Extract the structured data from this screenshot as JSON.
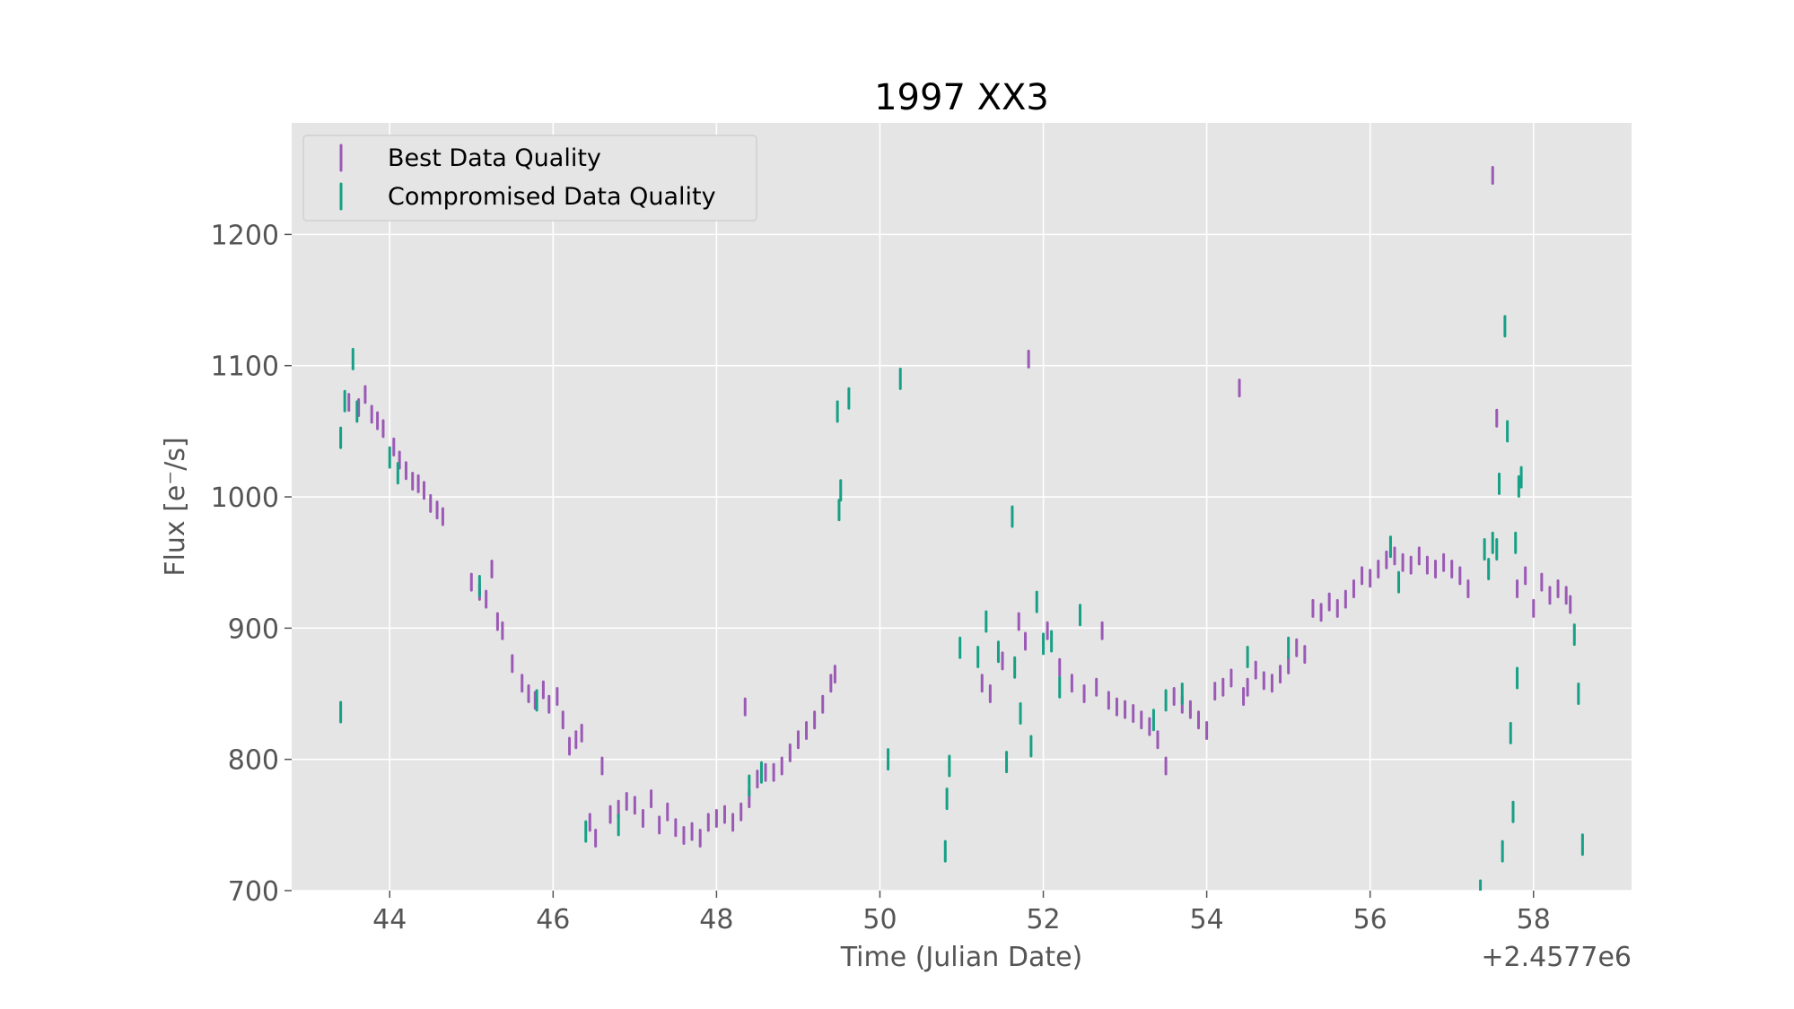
{
  "chart_data": {
    "type": "scatter",
    "title": "1997 XX3",
    "xlabel": "Time (Julian Date)",
    "ylabel": "Flux [e⁻/s]",
    "x_offset_label": "+2.4577e6",
    "xlim": [
      42.8,
      59.2
    ],
    "ylim": [
      700,
      1285
    ],
    "xticks": [
      44,
      46,
      48,
      50,
      52,
      54,
      56,
      58
    ],
    "yticks": [
      700,
      800,
      900,
      1000,
      1100,
      1200
    ],
    "grid": true,
    "legend_position": "upper-left",
    "series": [
      {
        "name": "Best Data Quality",
        "color": "#9b59b6",
        "marker": "errorbar",
        "points": [
          [
            43.5,
            1072
          ],
          [
            43.62,
            1068
          ],
          [
            43.7,
            1078
          ],
          [
            43.78,
            1063
          ],
          [
            43.85,
            1058
          ],
          [
            43.92,
            1052
          ],
          [
            44.05,
            1038
          ],
          [
            44.12,
            1028
          ],
          [
            44.2,
            1020
          ],
          [
            44.28,
            1012
          ],
          [
            44.35,
            1010
          ],
          [
            44.42,
            1005
          ],
          [
            44.5,
            995
          ],
          [
            44.58,
            990
          ],
          [
            44.65,
            985
          ],
          [
            45.0,
            935
          ],
          [
            45.1,
            928
          ],
          [
            45.18,
            922
          ],
          [
            45.25,
            945
          ],
          [
            45.32,
            905
          ],
          [
            45.38,
            898
          ],
          [
            45.5,
            873
          ],
          [
            45.62,
            858
          ],
          [
            45.7,
            850
          ],
          [
            45.78,
            845
          ],
          [
            45.88,
            853
          ],
          [
            45.95,
            842
          ],
          [
            46.05,
            848
          ],
          [
            46.12,
            830
          ],
          [
            46.2,
            810
          ],
          [
            46.28,
            815
          ],
          [
            46.35,
            820
          ],
          [
            46.45,
            752
          ],
          [
            46.52,
            740
          ],
          [
            46.6,
            795
          ],
          [
            46.7,
            758
          ],
          [
            46.8,
            762
          ],
          [
            46.9,
            768
          ],
          [
            47.0,
            765
          ],
          [
            47.1,
            755
          ],
          [
            47.2,
            770
          ],
          [
            47.3,
            750
          ],
          [
            47.4,
            760
          ],
          [
            47.5,
            748
          ],
          [
            47.6,
            742
          ],
          [
            47.7,
            745
          ],
          [
            47.8,
            740
          ],
          [
            47.9,
            752
          ],
          [
            48.0,
            755
          ],
          [
            48.1,
            758
          ],
          [
            48.2,
            752
          ],
          [
            48.3,
            760
          ],
          [
            48.35,
            840
          ],
          [
            48.4,
            770
          ],
          [
            48.5,
            785
          ],
          [
            48.6,
            790
          ],
          [
            48.7,
            790
          ],
          [
            48.8,
            795
          ],
          [
            48.9,
            805
          ],
          [
            49.0,
            815
          ],
          [
            49.1,
            822
          ],
          [
            49.2,
            830
          ],
          [
            49.3,
            842
          ],
          [
            49.4,
            858
          ],
          [
            49.45,
            865
          ],
          [
            51.25,
            858
          ],
          [
            51.35,
            850
          ],
          [
            51.5,
            875
          ],
          [
            51.7,
            905
          ],
          [
            51.78,
            890
          ],
          [
            51.82,
            1105
          ],
          [
            52.05,
            898
          ],
          [
            52.2,
            870
          ],
          [
            52.35,
            858
          ],
          [
            52.5,
            850
          ],
          [
            52.65,
            855
          ],
          [
            52.72,
            898
          ],
          [
            52.8,
            845
          ],
          [
            52.9,
            840
          ],
          [
            53.0,
            838
          ],
          [
            53.1,
            835
          ],
          [
            53.2,
            830
          ],
          [
            53.3,
            825
          ],
          [
            53.4,
            815
          ],
          [
            53.5,
            795
          ],
          [
            53.6,
            848
          ],
          [
            53.7,
            842
          ],
          [
            53.8,
            838
          ],
          [
            53.9,
            830
          ],
          [
            54.0,
            822
          ],
          [
            54.1,
            852
          ],
          [
            54.2,
            855
          ],
          [
            54.3,
            862
          ],
          [
            54.4,
            1083
          ],
          [
            54.45,
            848
          ],
          [
            54.5,
            855
          ],
          [
            54.6,
            868
          ],
          [
            54.7,
            860
          ],
          [
            54.8,
            858
          ],
          [
            54.9,
            865
          ],
          [
            55.0,
            872
          ],
          [
            55.1,
            885
          ],
          [
            55.2,
            880
          ],
          [
            55.3,
            915
          ],
          [
            55.4,
            912
          ],
          [
            55.5,
            920
          ],
          [
            55.6,
            915
          ],
          [
            55.7,
            922
          ],
          [
            55.8,
            930
          ],
          [
            55.9,
            940
          ],
          [
            56.0,
            938
          ],
          [
            56.1,
            945
          ],
          [
            56.2,
            952
          ],
          [
            56.3,
            955
          ],
          [
            56.4,
            950
          ],
          [
            56.5,
            948
          ],
          [
            56.6,
            955
          ],
          [
            56.7,
            948
          ],
          [
            56.8,
            945
          ],
          [
            56.9,
            950
          ],
          [
            57.0,
            945
          ],
          [
            57.1,
            940
          ],
          [
            57.2,
            930
          ],
          [
            57.5,
            1245
          ],
          [
            57.55,
            1060
          ],
          [
            57.8,
            930
          ],
          [
            57.9,
            940
          ],
          [
            58.0,
            915
          ],
          [
            58.1,
            935
          ],
          [
            58.2,
            925
          ],
          [
            58.3,
            930
          ],
          [
            58.4,
            925
          ],
          [
            58.45,
            918
          ]
        ]
      },
      {
        "name": "Compromised Data Quality",
        "color": "#16a085",
        "marker": "errorbar",
        "points": [
          [
            43.4,
            1045
          ],
          [
            43.4,
            836
          ],
          [
            43.45,
            1073
          ],
          [
            43.55,
            1105
          ],
          [
            43.6,
            1065
          ],
          [
            44.0,
            1030
          ],
          [
            44.1,
            1018
          ],
          [
            45.1,
            932
          ],
          [
            45.8,
            845
          ],
          [
            46.4,
            745
          ],
          [
            46.8,
            750
          ],
          [
            48.4,
            780
          ],
          [
            48.55,
            790
          ],
          [
            49.5,
            990
          ],
          [
            49.52,
            1005
          ],
          [
            49.48,
            1065
          ],
          [
            49.62,
            1075
          ],
          [
            50.1,
            800
          ],
          [
            50.25,
            1090
          ],
          [
            50.8,
            730
          ],
          [
            50.82,
            770
          ],
          [
            50.85,
            795
          ],
          [
            50.98,
            885
          ],
          [
            51.2,
            878
          ],
          [
            51.3,
            905
          ],
          [
            51.45,
            882
          ],
          [
            51.55,
            798
          ],
          [
            51.62,
            985
          ],
          [
            51.65,
            870
          ],
          [
            51.72,
            835
          ],
          [
            51.85,
            810
          ],
          [
            51.92,
            920
          ],
          [
            52.0,
            888
          ],
          [
            52.1,
            890
          ],
          [
            52.2,
            855
          ],
          [
            52.45,
            910
          ],
          [
            53.35,
            830
          ],
          [
            53.5,
            845
          ],
          [
            53.7,
            850
          ],
          [
            54.5,
            878
          ],
          [
            55.0,
            885
          ],
          [
            56.25,
            962
          ],
          [
            56.35,
            935
          ],
          [
            57.4,
            960
          ],
          [
            57.45,
            945
          ],
          [
            57.5,
            965
          ],
          [
            57.55,
            960
          ],
          [
            57.58,
            1010
          ],
          [
            57.62,
            730
          ],
          [
            57.65,
            1130
          ],
          [
            57.68,
            1050
          ],
          [
            57.72,
            820
          ],
          [
            57.75,
            760
          ],
          [
            57.78,
            965
          ],
          [
            57.8,
            862
          ],
          [
            57.82,
            1008
          ],
          [
            57.85,
            1015
          ],
          [
            58.5,
            895
          ],
          [
            58.55,
            850
          ],
          [
            58.6,
            735
          ],
          [
            57.35,
            700
          ]
        ]
      }
    ]
  }
}
